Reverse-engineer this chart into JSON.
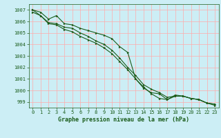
{
  "bg_color": "#cceef5",
  "plot_bg_color": "#cceef5",
  "grid_color": "#ffaaaa",
  "line_color": "#1a5c1a",
  "marker_color": "#1a5c1a",
  "xlabel": "Graphe pression niveau de la mer (hPa)",
  "xlabel_color": "#1a5c1a",
  "xlim": [
    -0.5,
    23.5
  ],
  "ylim": [
    998.5,
    1007.5
  ],
  "yticks": [
    999,
    1000,
    1001,
    1002,
    1003,
    1004,
    1005,
    1006,
    1007
  ],
  "xticks": [
    0,
    1,
    2,
    3,
    4,
    5,
    6,
    7,
    8,
    9,
    10,
    11,
    12,
    13,
    14,
    15,
    16,
    17,
    18,
    19,
    20,
    21,
    22,
    23
  ],
  "series1": [
    1007.0,
    1006.8,
    1006.2,
    1006.5,
    1005.8,
    1005.7,
    1005.4,
    1005.2,
    1005.0,
    1004.8,
    1004.5,
    1003.8,
    1003.3,
    1001.0,
    1000.2,
    999.8,
    999.7,
    999.2,
    999.6,
    999.5,
    999.3,
    999.2,
    998.9,
    998.8
  ],
  "series2": [
    1007.0,
    1006.5,
    1005.9,
    1005.8,
    1005.5,
    1005.4,
    1005.0,
    1004.7,
    1004.3,
    1004.0,
    1003.5,
    1002.8,
    1002.0,
    1001.3,
    1000.5,
    1000.1,
    999.8,
    999.4,
    999.5,
    999.5,
    999.3,
    999.2,
    998.9,
    998.8
  ],
  "series3": [
    1006.8,
    1006.5,
    1005.8,
    1005.7,
    1005.3,
    1005.1,
    1004.7,
    1004.4,
    1004.1,
    1003.7,
    1003.2,
    1002.5,
    1001.8,
    1001.0,
    1000.3,
    999.7,
    999.3,
    999.2,
    999.5,
    999.5,
    999.3,
    999.2,
    998.9,
    998.7
  ],
  "tick_labelsize": 5,
  "xlabel_fontsize": 6,
  "lw": 0.8,
  "ms": 2.0
}
